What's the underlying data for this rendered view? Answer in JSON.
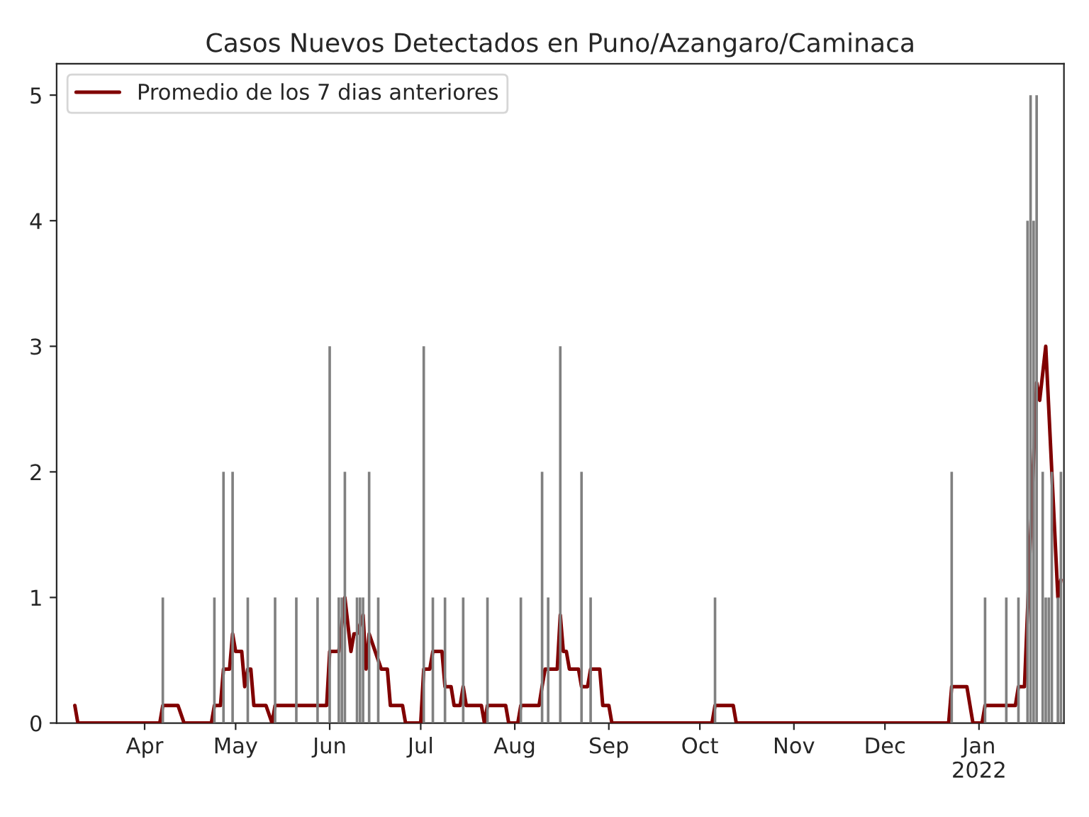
{
  "chart_data": {
    "type": "bar",
    "title": "Casos Nuevos Detectados en Puno/Azangaro/Caminaca",
    "xlim": [
      "2021-03-03",
      "2022-01-29"
    ],
    "xticks": [
      {
        "value": "2021-04-01",
        "label": "Apr"
      },
      {
        "value": "2021-05-01",
        "label": "May"
      },
      {
        "value": "2021-06-01",
        "label": "Jun"
      },
      {
        "value": "2021-07-01",
        "label": "Jul"
      },
      {
        "value": "2021-08-01",
        "label": "Aug"
      },
      {
        "value": "2021-09-01",
        "label": "Sep"
      },
      {
        "value": "2021-10-01",
        "label": "Oct"
      },
      {
        "value": "2021-11-01",
        "label": "Nov"
      },
      {
        "value": "2021-12-01",
        "label": "Dec"
      },
      {
        "value": "2022-01-01",
        "label": "Jan\n2022"
      }
    ],
    "ylim": [
      0,
      5.25
    ],
    "yticks": [
      0,
      1,
      2,
      3,
      4,
      5
    ],
    "legend": "top left",
    "grid": false,
    "series": [
      {
        "color": "#808080",
        "x": [
          "2021-04-07",
          "2021-04-24",
          "2021-04-27",
          "2021-04-30",
          "2021-05-05",
          "2021-05-14",
          "2021-05-21",
          "2021-05-28",
          "2021-06-01",
          "2021-06-04",
          "2021-06-05",
          "2021-06-06",
          "2021-06-10",
          "2021-06-11",
          "2021-06-12",
          "2021-06-14",
          "2021-06-17",
          "2021-07-02",
          "2021-07-05",
          "2021-07-09",
          "2021-07-15",
          "2021-07-23",
          "2021-08-03",
          "2021-08-10",
          "2021-08-12",
          "2021-08-16",
          "2021-08-23",
          "2021-08-26",
          "2021-10-06",
          "2021-12-23",
          "2022-01-03",
          "2022-01-10",
          "2022-01-14",
          "2022-01-17",
          "2022-01-18",
          "2022-01-19",
          "2022-01-20",
          "2022-01-22",
          "2022-01-23",
          "2022-01-24",
          "2022-01-25",
          "2022-01-27",
          "2022-01-28"
        ],
        "values": [
          1,
          1,
          2,
          2,
          1,
          1,
          1,
          1,
          3,
          1,
          1,
          2,
          1,
          1,
          1,
          2,
          1,
          3,
          1,
          1,
          1,
          1,
          1,
          2,
          1,
          3,
          2,
          1,
          1,
          2,
          1,
          1,
          1,
          4,
          5,
          4,
          5,
          2,
          1,
          1,
          2,
          1,
          2
        ]
      },
      {
        "type": "line",
        "name": "Promedio de los 7 dias anteriores",
        "color": "#800000",
        "x": [
          "2021-03-09",
          "2021-03-10",
          "2021-04-06",
          "2021-04-07",
          "2021-04-12",
          "2021-04-14",
          "2021-04-23",
          "2021-04-24",
          "2021-04-26",
          "2021-04-27",
          "2021-04-29",
          "2021-04-30",
          "2021-05-01",
          "2021-05-03",
          "2021-05-04",
          "2021-05-05",
          "2021-05-06",
          "2021-05-07",
          "2021-05-11",
          "2021-05-13",
          "2021-05-14",
          "2021-05-31",
          "2021-06-01",
          "2021-06-04",
          "2021-06-06",
          "2021-06-08",
          "2021-06-09",
          "2021-06-10",
          "2021-06-12",
          "2021-06-13",
          "2021-06-14",
          "2021-06-16",
          "2021-06-18",
          "2021-06-20",
          "2021-06-21",
          "2021-06-25",
          "2021-06-26",
          "2021-07-01",
          "2021-07-02",
          "2021-07-04",
          "2021-07-05",
          "2021-07-08",
          "2021-07-09",
          "2021-07-11",
          "2021-07-12",
          "2021-07-14",
          "2021-07-15",
          "2021-07-16",
          "2021-07-21",
          "2021-07-22",
          "2021-07-23",
          "2021-07-29",
          "2021-07-30",
          "2021-08-02",
          "2021-08-03",
          "2021-08-09",
          "2021-08-10",
          "2021-08-11",
          "2021-08-15",
          "2021-08-16",
          "2021-08-17",
          "2021-08-18",
          "2021-08-19",
          "2021-08-22",
          "2021-08-23",
          "2021-08-25",
          "2021-08-26",
          "2021-08-29",
          "2021-08-30",
          "2021-09-01",
          "2021-09-02",
          "2021-10-05",
          "2021-10-06",
          "2021-10-12",
          "2021-10-13",
          "2021-12-22",
          "2021-12-23",
          "2021-12-28",
          "2021-12-30",
          "2022-01-02",
          "2022-01-03",
          "2022-01-13",
          "2022-01-14",
          "2022-01-16",
          "2022-01-20",
          "2022-01-21",
          "2022-01-23",
          "2022-01-27",
          "2022-01-28"
        ],
        "values": [
          0.14,
          0,
          0,
          0.14,
          0.14,
          0,
          0,
          0.14,
          0.14,
          0.43,
          0.43,
          0.71,
          0.57,
          0.57,
          0.29,
          0.43,
          0.43,
          0.14,
          0.14,
          0,
          0.14,
          0.14,
          0.57,
          0.57,
          1.0,
          0.57,
          0.71,
          0.71,
          0.86,
          0.43,
          0.71,
          0.57,
          0.43,
          0.43,
          0.14,
          0.14,
          0,
          0,
          0.43,
          0.43,
          0.57,
          0.57,
          0.29,
          0.29,
          0.14,
          0.14,
          0.29,
          0.14,
          0.14,
          0,
          0.14,
          0.14,
          0,
          0,
          0.14,
          0.14,
          0.29,
          0.43,
          0.43,
          0.86,
          0.57,
          0.57,
          0.43,
          0.43,
          0.29,
          0.29,
          0.43,
          0.43,
          0.14,
          0.14,
          0,
          0,
          0.14,
          0.14,
          0,
          0,
          0.29,
          0.29,
          0,
          0,
          0.14,
          0.14,
          0.29,
          0.29,
          2.71,
          2.57,
          3.0,
          1.0,
          1.14
        ]
      }
    ]
  }
}
